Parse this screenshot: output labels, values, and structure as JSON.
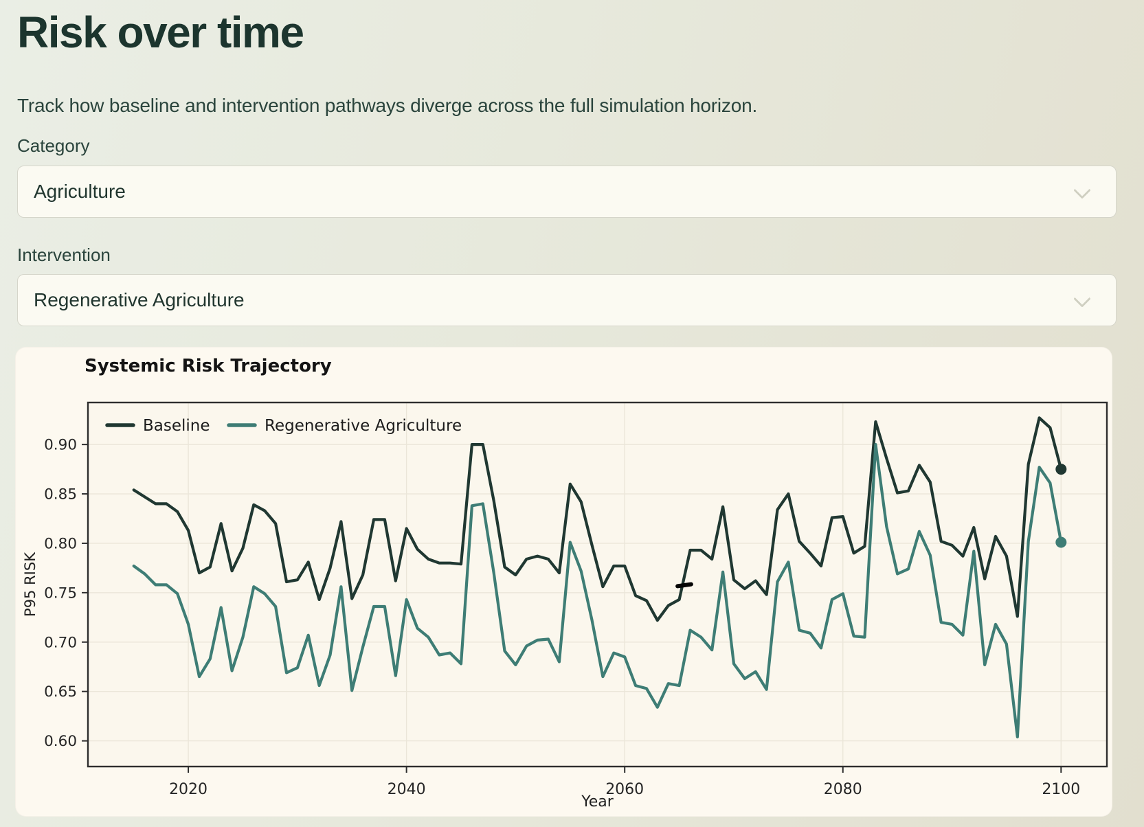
{
  "page": {
    "title": "Risk over time",
    "subtitle": "Track how baseline and intervention pathways diverge across the full simulation horizon."
  },
  "filters": {
    "category_label": "Category",
    "category_value": "Agriculture",
    "intervention_label": "Intervention",
    "intervention_value": "Regenerative Agriculture",
    "select_chevron_icon": "chevron-down"
  },
  "colors": {
    "page_heading": "#1c352e",
    "card_bg": "#fdf9f0",
    "baseline_line": "#203832",
    "intervention_line": "#3e7d75",
    "grid": "#ebe6d9",
    "spine": "#2e2e2e"
  },
  "chart_data": {
    "type": "line",
    "title": "Systemic Risk Trajectory",
    "xlabel": "Year",
    "ylabel": "P95 RISK",
    "grid": true,
    "legend_position": "top-left",
    "xticks": [
      2020,
      2040,
      2060,
      2080,
      2100
    ],
    "yticks": [
      0.6,
      0.65,
      0.7,
      0.75,
      0.8,
      0.85,
      0.9
    ],
    "xlim": [
      2010.8,
      2104.2
    ],
    "ylim": [
      0.574,
      0.9425
    ],
    "x_years": [
      2015,
      2016,
      2017,
      2018,
      2019,
      2020,
      2021,
      2022,
      2023,
      2024,
      2025,
      2026,
      2027,
      2028,
      2029,
      2030,
      2031,
      2032,
      2033,
      2034,
      2035,
      2036,
      2037,
      2038,
      2039,
      2040,
      2041,
      2042,
      2043,
      2044,
      2045,
      2046,
      2047,
      2048,
      2049,
      2050,
      2051,
      2052,
      2053,
      2054,
      2055,
      2056,
      2057,
      2058,
      2059,
      2060,
      2061,
      2062,
      2063,
      2064,
      2065,
      2066,
      2067,
      2068,
      2069,
      2070,
      2071,
      2072,
      2073,
      2074,
      2075,
      2076,
      2077,
      2078,
      2079,
      2080,
      2081,
      2082,
      2083,
      2084,
      2085,
      2086,
      2087,
      2088,
      2089,
      2090,
      2091,
      2092,
      2093,
      2094,
      2095,
      2096,
      2097,
      2098,
      2099,
      2100
    ],
    "series": [
      {
        "name": "Baseline",
        "color": "#203832",
        "end_marker": true,
        "values": [
          0.854,
          0.847,
          0.84,
          0.84,
          0.832,
          0.813,
          0.77,
          0.776,
          0.82,
          0.772,
          0.795,
          0.839,
          0.833,
          0.82,
          0.761,
          0.763,
          0.781,
          0.743,
          0.775,
          0.822,
          0.744,
          0.768,
          0.824,
          0.824,
          0.762,
          0.815,
          0.794,
          0.784,
          0.78,
          0.78,
          0.779,
          0.9,
          0.9,
          0.843,
          0.776,
          0.768,
          0.784,
          0.787,
          0.784,
          0.77,
          0.86,
          0.842,
          0.798,
          0.756,
          0.777,
          0.777,
          0.747,
          0.742,
          0.722,
          0.737,
          0.743,
          0.793,
          0.793,
          0.784,
          0.837,
          0.763,
          0.754,
          0.762,
          0.748,
          0.834,
          0.85,
          0.802,
          0.79,
          0.777,
          0.826,
          0.827,
          0.79,
          0.797,
          0.923,
          0.886,
          0.851,
          0.853,
          0.879,
          0.862,
          0.802,
          0.798,
          0.787,
          0.816,
          0.764,
          0.807,
          0.787,
          0.726,
          0.88,
          0.927,
          0.917,
          0.875
        ]
      },
      {
        "name": "Regenerative Agriculture",
        "color": "#3e7d75",
        "end_marker": true,
        "values": [
          0.777,
          0.769,
          0.758,
          0.758,
          0.749,
          0.718,
          0.665,
          0.683,
          0.735,
          0.671,
          0.705,
          0.756,
          0.749,
          0.736,
          0.669,
          0.674,
          0.707,
          0.656,
          0.687,
          0.756,
          0.651,
          0.695,
          0.736,
          0.736,
          0.666,
          0.743,
          0.714,
          0.705,
          0.687,
          0.689,
          0.678,
          0.838,
          0.84,
          0.77,
          0.691,
          0.677,
          0.696,
          0.702,
          0.703,
          0.68,
          0.801,
          0.772,
          0.722,
          0.665,
          0.689,
          0.685,
          0.656,
          0.653,
          0.634,
          0.658,
          0.656,
          0.712,
          0.705,
          0.692,
          0.771,
          0.678,
          0.663,
          0.67,
          0.652,
          0.761,
          0.781,
          0.712,
          0.709,
          0.694,
          0.743,
          0.749,
          0.706,
          0.705,
          0.9,
          0.817,
          0.769,
          0.774,
          0.812,
          0.788,
          0.72,
          0.718,
          0.707,
          0.792,
          0.677,
          0.718,
          0.698,
          0.604,
          0.802,
          0.877,
          0.861,
          0.801
        ]
      }
    ]
  }
}
